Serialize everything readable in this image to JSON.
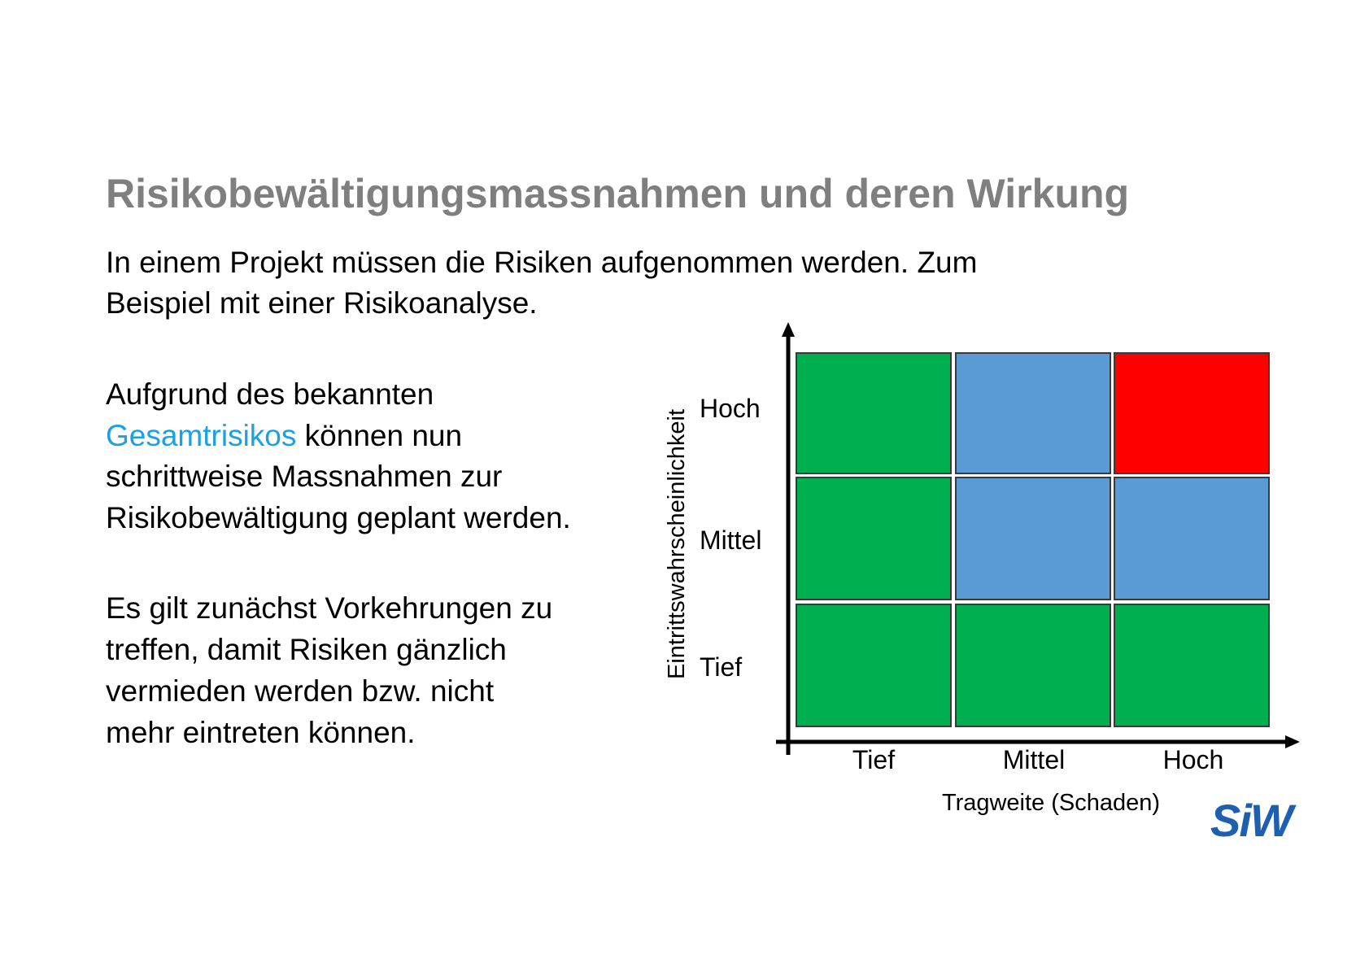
{
  "title": "Risikobewältigungsmassnahmen und deren Wirkung",
  "paragraphs": [
    {
      "lines": [
        "In einem Projekt müssen die Risiken aufgenommen werden. Zum",
        "Beispiel mit einer Risikoanalyse."
      ]
    },
    {
      "lines": [
        "Aufgrund des bekannten",
        "schrittweise Massnahmen zur",
        "Risikobewältigung geplant werden."
      ],
      "highlight": "Gesamtrisikos",
      "after_highlight": " können nun"
    },
    {
      "lines": [
        "Es gilt zunächst Vorkehrungen zu",
        "treffen, damit Risiken gänzlich",
        "vermieden werden bzw. nicht",
        "mehr eintreten können."
      ]
    }
  ],
  "matrix": {
    "y_axis_title": "Eintrittswahrscheinlichkeit",
    "x_axis_title": "Tragweite (Schaden)",
    "row_labels": [
      "Hoch",
      "Mittel",
      "Tief"
    ],
    "column_labels": [
      "Tief",
      "Mittel",
      "Hoch"
    ]
  },
  "logo": "SiW"
}
